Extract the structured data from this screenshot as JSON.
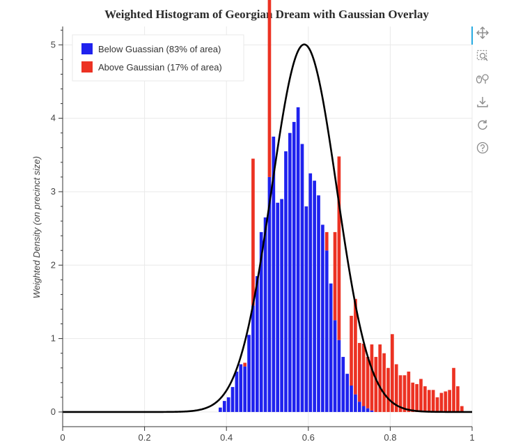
{
  "chart_data": {
    "type": "bar",
    "title": "Weighted Histogram of Georgian Dream with Gaussian Overlay",
    "ylabel": "Weighted Density (on precinct size)",
    "xlabel": "",
    "xlim": [
      0,
      1
    ],
    "ylim": [
      -0.2,
      5.25
    ],
    "xticks": [
      0,
      0.2,
      0.4,
      0.6,
      0.8,
      1
    ],
    "xtick_labels": [
      "0",
      "0.2",
      "0.4",
      "0.6",
      "0.8",
      "1"
    ],
    "yticks": [
      0,
      1,
      2,
      3,
      4,
      5
    ],
    "ytick_labels": [
      "0",
      "1",
      "2",
      "3",
      "4",
      "5"
    ],
    "grid": true,
    "legend_position": "top-left",
    "bin_width": 0.01,
    "bin_start": 0.38,
    "series": [
      {
        "name": "Below Guassian (83% of area)",
        "color": "#1f22ee",
        "values": [
          0.06,
          0.15,
          0.2,
          0.34,
          0.55,
          0.65,
          0.62,
          1.05,
          1.45,
          1.85,
          2.45,
          2.65,
          3.2,
          3.75,
          2.85,
          2.9,
          3.55,
          3.8,
          3.95,
          4.15,
          3.65,
          2.8,
          3.25,
          3.15,
          2.95,
          2.55,
          2.2,
          1.75,
          1.25,
          0.98,
          0.75,
          0.52,
          0.36,
          0.24,
          0.14,
          0.08,
          0.05,
          0.02,
          0,
          0,
          0,
          0,
          0,
          0,
          0,
          0,
          0,
          0,
          0,
          0,
          0,
          0,
          0,
          0,
          0,
          0,
          0,
          0,
          0,
          0
        ]
      },
      {
        "name": "Above Gaussian (17% of area)",
        "color": "#ec3223",
        "values": [
          0,
          0,
          0,
          0,
          0,
          0,
          0.05,
          0,
          2.0,
          0,
          0,
          0,
          2.85,
          0,
          0,
          0,
          0,
          0,
          0,
          0,
          0,
          0,
          0,
          0,
          0,
          0,
          0.25,
          0,
          1.2,
          2.5,
          0,
          0,
          0.95,
          1.3,
          0.8,
          0.85,
          0.7,
          0.9,
          0.75,
          0.92,
          0.8,
          0.6,
          1.06,
          0.65,
          0.5,
          0.5,
          0.55,
          0.4,
          0.38,
          0.45,
          0.35,
          0.3,
          0.3,
          0.2,
          0.26,
          0.28,
          0.3,
          0.6,
          0.35,
          0.08
        ]
      }
    ],
    "gaussian": {
      "name": "Gaussian overlay",
      "color": "#000000",
      "mean": 0.59,
      "sd": 0.0797
    }
  },
  "toolbar": {
    "tools": [
      "pan-icon",
      "box-zoom-icon",
      "wheel-zoom-icon",
      "save-icon",
      "reset-icon",
      "help-icon"
    ]
  }
}
